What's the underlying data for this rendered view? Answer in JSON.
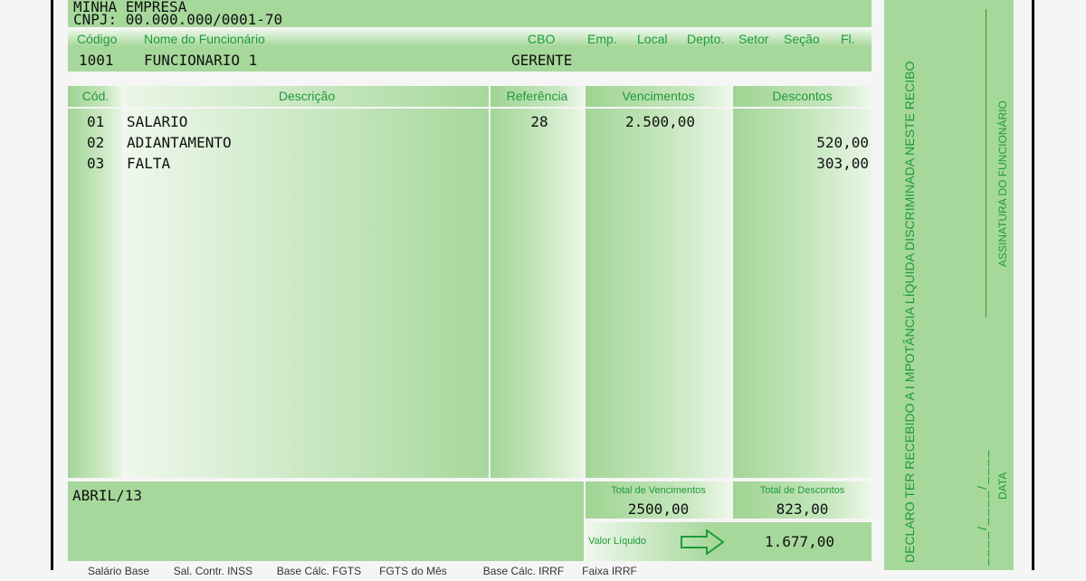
{
  "company": {
    "name": "MINHA EMPRESA",
    "cnpj": "CNPJ: 00.000.000/0001-70"
  },
  "employee": {
    "headers": {
      "code": "Código",
      "name": "Nome do Funcionário",
      "cbo": "CBO",
      "emp": "Emp.",
      "local": "Local",
      "depto": "Depto.",
      "setor": "Setor",
      "secao": "Seção",
      "fl": "Fl."
    },
    "code": "1001",
    "name": "FUNCIONARIO 1",
    "cbo": "GERENTE"
  },
  "table": {
    "headers": {
      "code": "Cód.",
      "description": "Descrição",
      "reference": "Referência",
      "earnings": "Vencimentos",
      "deductions": "Descontos"
    },
    "rows": [
      {
        "code": "01",
        "description": "SALARIO",
        "reference": "28",
        "earnings": "2.500,00",
        "deductions": ""
      },
      {
        "code": "02",
        "description": "ADIANTAMENTO",
        "reference": "",
        "earnings": "",
        "deductions": "520,00"
      },
      {
        "code": "03",
        "description": "FALTA",
        "reference": "",
        "earnings": "",
        "deductions": "303,00"
      }
    ]
  },
  "footer": {
    "period": "ABRIL/13",
    "total_earnings_label": "Total de Vencimentos",
    "total_earnings": "2500,00",
    "total_deductions_label": "Total de Descontos",
    "total_deductions": "823,00",
    "net_label": "Valor Líquido",
    "net_value": "1.677,00",
    "bases_line": "Salário Base        Sal. Contr. INSS        Base Cálc. FGTS      FGTS do Mês            Base Cálc. IRRF      Faixa IRRF"
  },
  "receipt": {
    "declaration": "DECLARO TER RECEBIDO  A I MPOTÂNCIA LÍQUIDA DISCRIMINADA NESTE RECIBO",
    "signature_label": "ASSINATURA DO FUNCIONÁRIO",
    "date_label": "DATA",
    "date_blank": "____/____/____"
  },
  "colors": {
    "green_panel": "#a6d89b",
    "label_green": "#1f9a3a",
    "arrow": "#1f9a3a"
  }
}
